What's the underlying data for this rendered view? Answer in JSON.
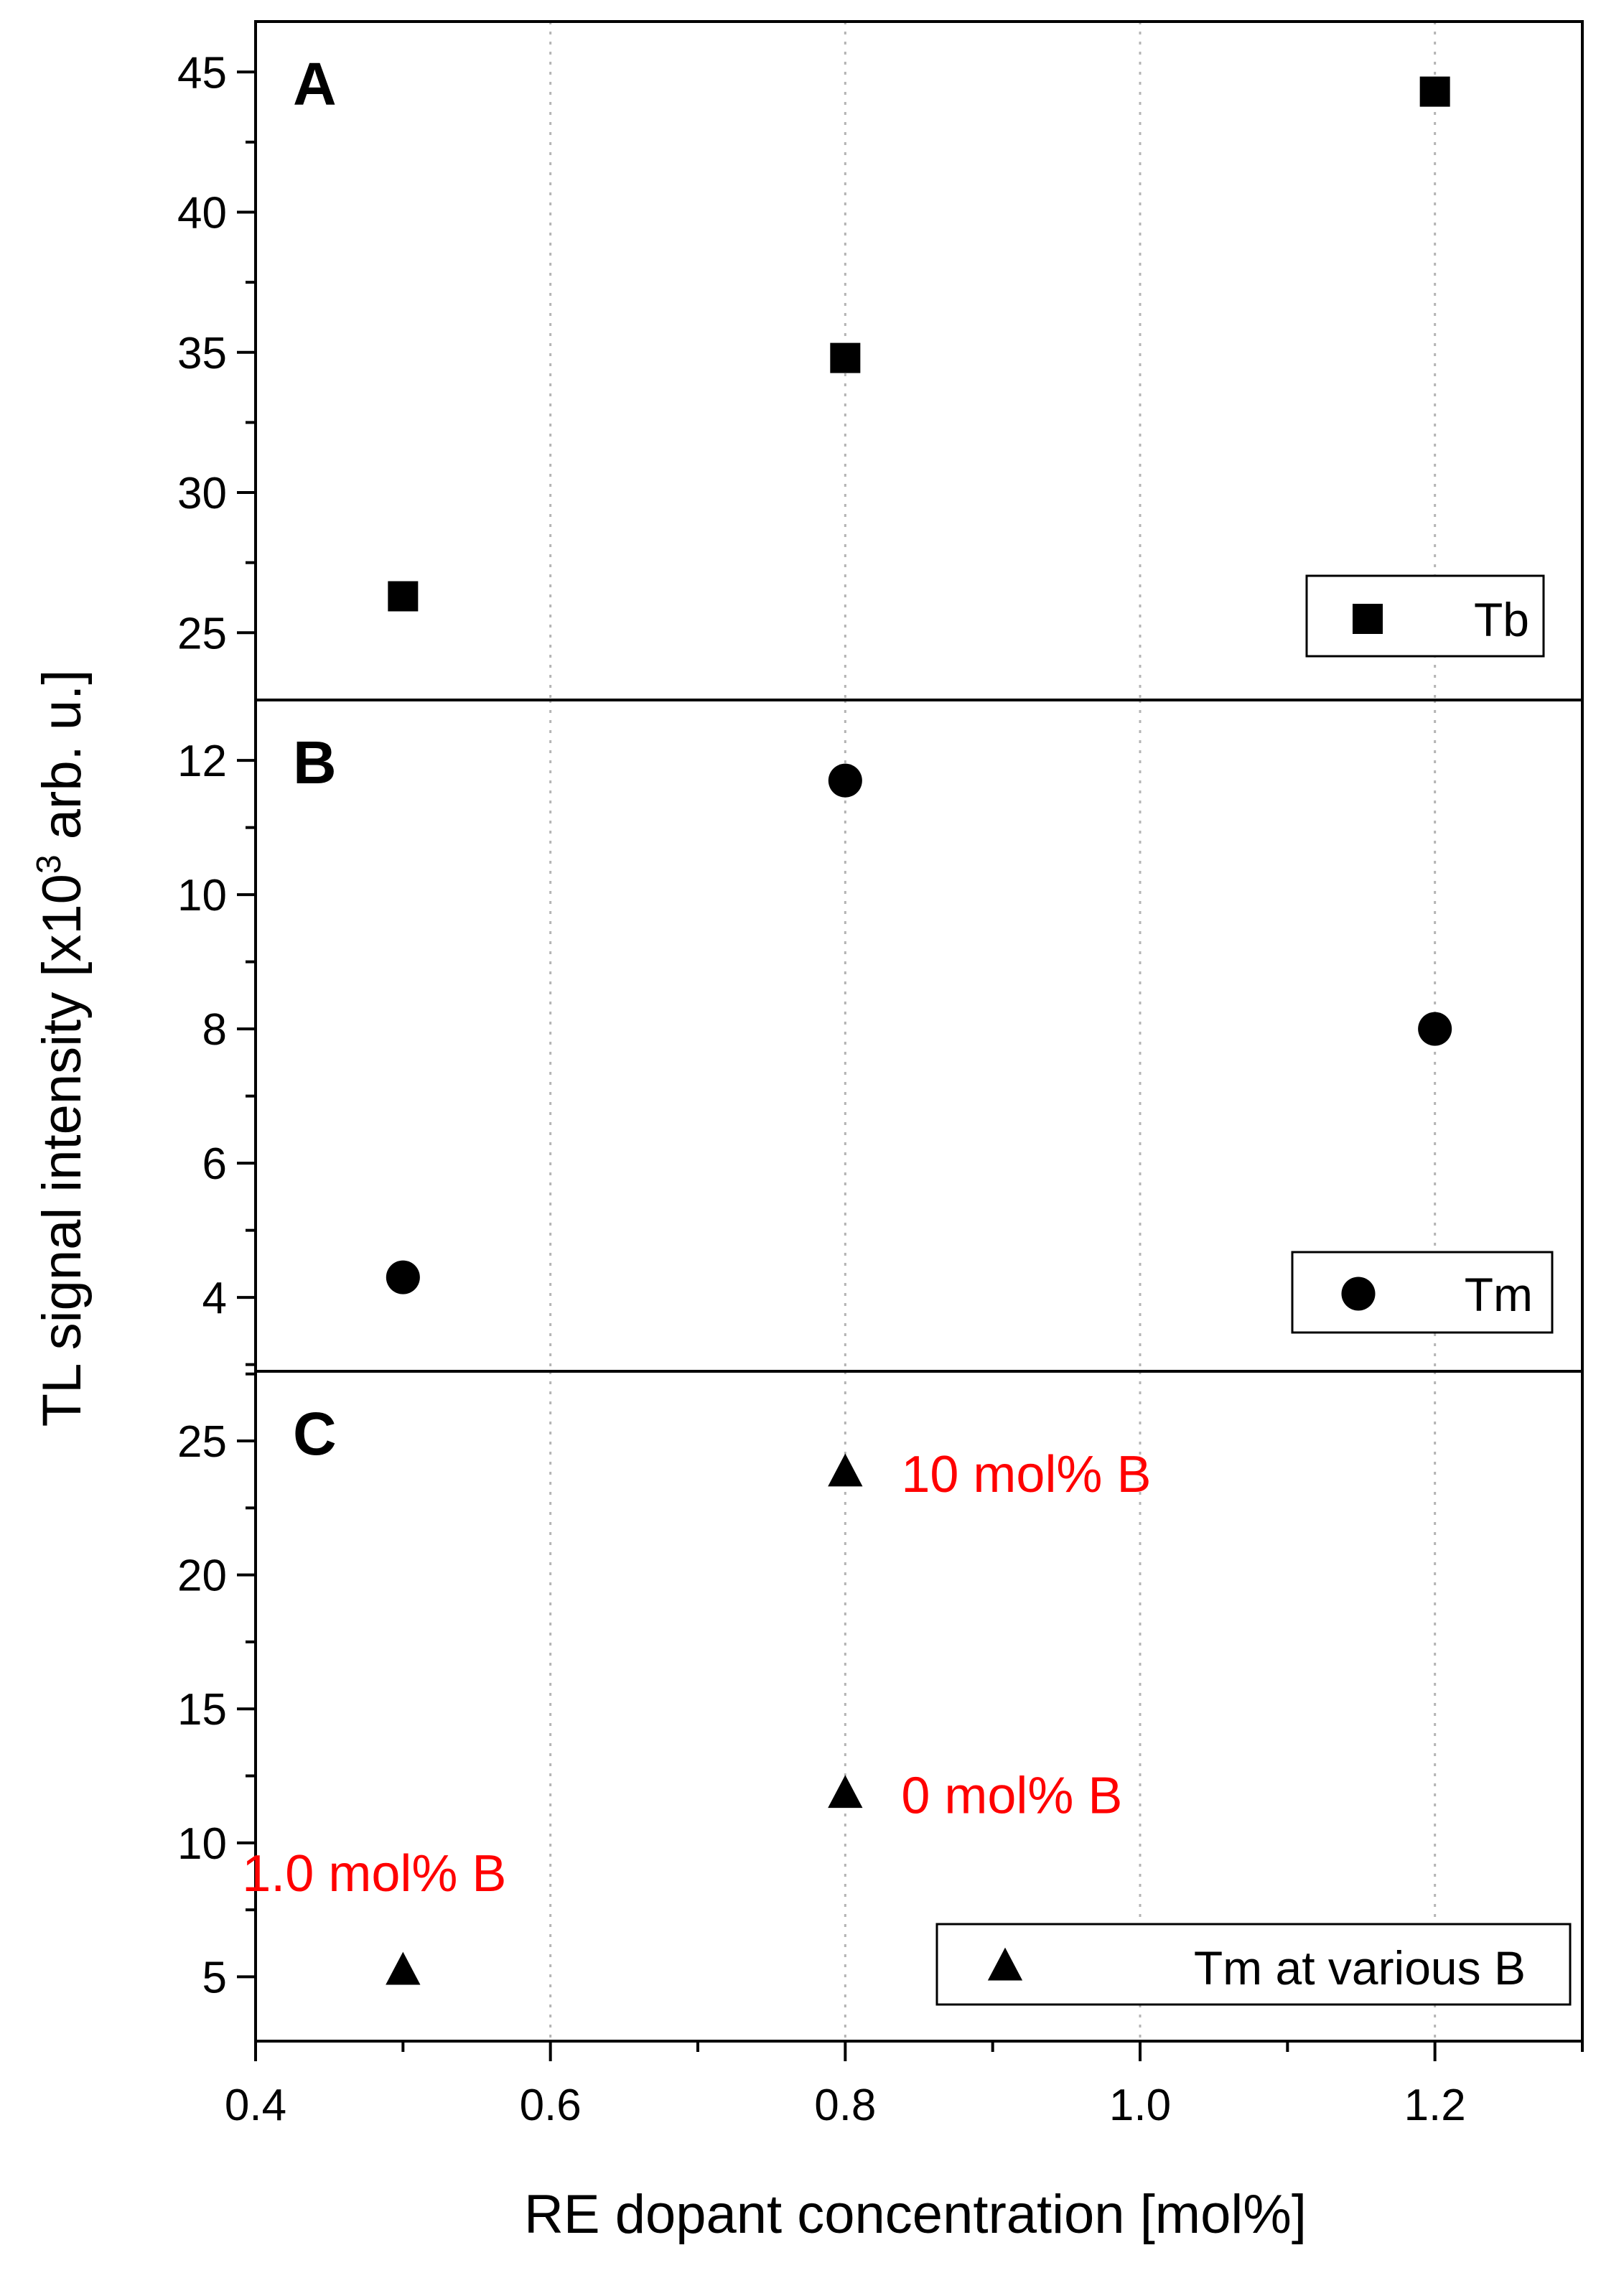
{
  "colors": {
    "annotation": "#ff0000",
    "marker": "#000000",
    "grid": "#b4b4b4"
  },
  "chart_data": {
    "type": "scatter",
    "xlabel": "RE dopant concentration [mol%]",
    "ylabel_main": "TL signal intensity [x10",
    "ylabel_sup": "3",
    "ylabel_end": " arb. u.]",
    "x_range": [
      0.4,
      1.3
    ],
    "x_ticks": [
      "0.4",
      "0.6",
      "0.8",
      "1.0",
      "1.2"
    ],
    "x_tick_values": [
      0.4,
      0.6,
      0.8,
      1.0,
      1.2
    ],
    "x_grid": [
      0.6,
      0.8,
      1.0,
      1.2
    ],
    "panels": [
      {
        "label": "A",
        "y_range": [
          22.6,
          46.8
        ],
        "y_ticks": [
          "25",
          "30",
          "35",
          "40",
          "45"
        ],
        "y_tick_values": [
          25,
          30,
          35,
          40,
          45
        ],
        "marker": "square",
        "legend": "Tb",
        "points": [
          {
            "x": 0.5,
            "y": 26.3
          },
          {
            "x": 0.8,
            "y": 34.8
          },
          {
            "x": 1.2,
            "y": 44.3
          }
        ]
      },
      {
        "label": "B",
        "y_range": [
          2.9,
          12.9
        ],
        "y_ticks": [
          "4",
          "6",
          "8",
          "10",
          "12"
        ],
        "y_tick_values": [
          4,
          6,
          8,
          10,
          12
        ],
        "marker": "circle",
        "legend": "Tm",
        "points": [
          {
            "x": 0.5,
            "y": 4.3
          },
          {
            "x": 0.8,
            "y": 11.7
          },
          {
            "x": 1.2,
            "y": 8.0
          }
        ]
      },
      {
        "label": "C",
        "y_range": [
          2.6,
          27.6
        ],
        "y_ticks": [
          "5",
          "10",
          "15",
          "20",
          "25"
        ],
        "y_tick_values": [
          5,
          10,
          15,
          20,
          25
        ],
        "marker": "triangle",
        "legend": "Tm at various B",
        "points": [
          {
            "x": 0.5,
            "y": 5.2,
            "annotation": "1.0 mol% B"
          },
          {
            "x": 0.8,
            "y": 11.8,
            "annotation": "0 mol% B"
          },
          {
            "x": 0.8,
            "y": 23.8,
            "annotation": "10 mol% B"
          }
        ]
      }
    ]
  }
}
